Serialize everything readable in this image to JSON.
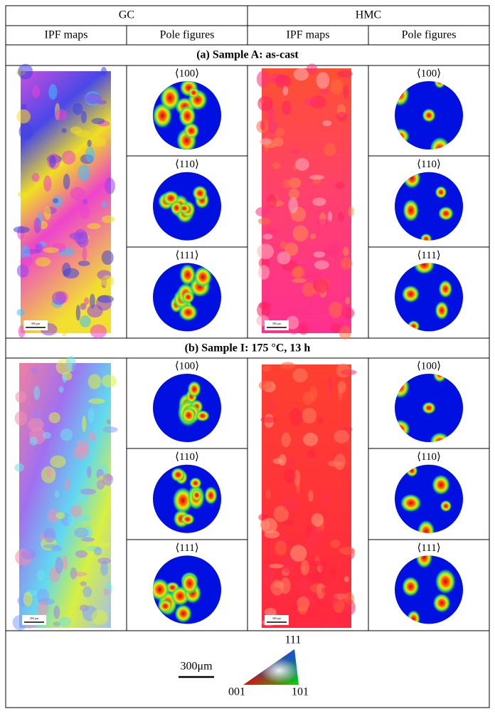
{
  "header": {
    "groups": [
      "GC",
      "HMC"
    ],
    "columns": [
      "IPF maps",
      "Pole figures",
      "IPF maps",
      "Pole figures"
    ]
  },
  "sections": [
    {
      "title": "(a) Sample A: as-cast",
      "gc": {
        "scale_bar": "300 µm",
        "poles": [
          "⟨100⟩",
          "⟨110⟩",
          "⟨111⟩"
        ]
      },
      "hmc": {
        "scale_bar": "300 µm",
        "poles": [
          "⟨100⟩",
          "⟨110⟩",
          "⟨111⟩"
        ]
      }
    },
    {
      "title": "(b) Sample I: 175 °C, 13 h",
      "gc": {
        "scale_bar": "300 µm",
        "poles": [
          "⟨100⟩",
          "⟨110⟩",
          "⟨111⟩"
        ]
      },
      "hmc": {
        "scale_bar": "300 µm",
        "poles": [
          "⟨100⟩",
          "⟨110⟩",
          "⟨111⟩"
        ]
      }
    }
  ],
  "legend": {
    "scale_bar": "300μm",
    "triangle": {
      "top": "111",
      "left": "001",
      "right": "101"
    }
  }
}
